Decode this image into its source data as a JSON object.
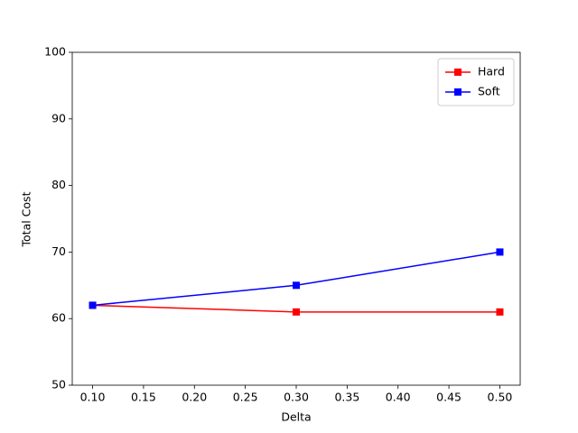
{
  "chart_data": {
    "type": "line",
    "x_label": "Delta",
    "y_label": "Total Cost",
    "x": [
      0.1,
      0.3,
      0.5
    ],
    "series": [
      {
        "name": "Hard",
        "color": "#ff0000",
        "values": [
          62,
          61,
          61
        ]
      },
      {
        "name": "Soft",
        "color": "#0000ff",
        "values": [
          62,
          65,
          70
        ]
      }
    ],
    "xlim": [
      0.08,
      0.52
    ],
    "xticks": [
      {
        "value": 0.1,
        "label": "0.10"
      },
      {
        "value": 0.15,
        "label": "0.15"
      },
      {
        "value": 0.2,
        "label": "0.20"
      },
      {
        "value": 0.25,
        "label": "0.25"
      },
      {
        "value": 0.3,
        "label": "0.30"
      },
      {
        "value": 0.35,
        "label": "0.35"
      },
      {
        "value": 0.4,
        "label": "0.40"
      },
      {
        "value": 0.45,
        "label": "0.45"
      },
      {
        "value": 0.5,
        "label": "0.50"
      }
    ],
    "ylim": [
      50,
      100
    ],
    "yticks": [
      50,
      60,
      70,
      80,
      90,
      100
    ],
    "legend": "upper-right",
    "marker": "square"
  }
}
